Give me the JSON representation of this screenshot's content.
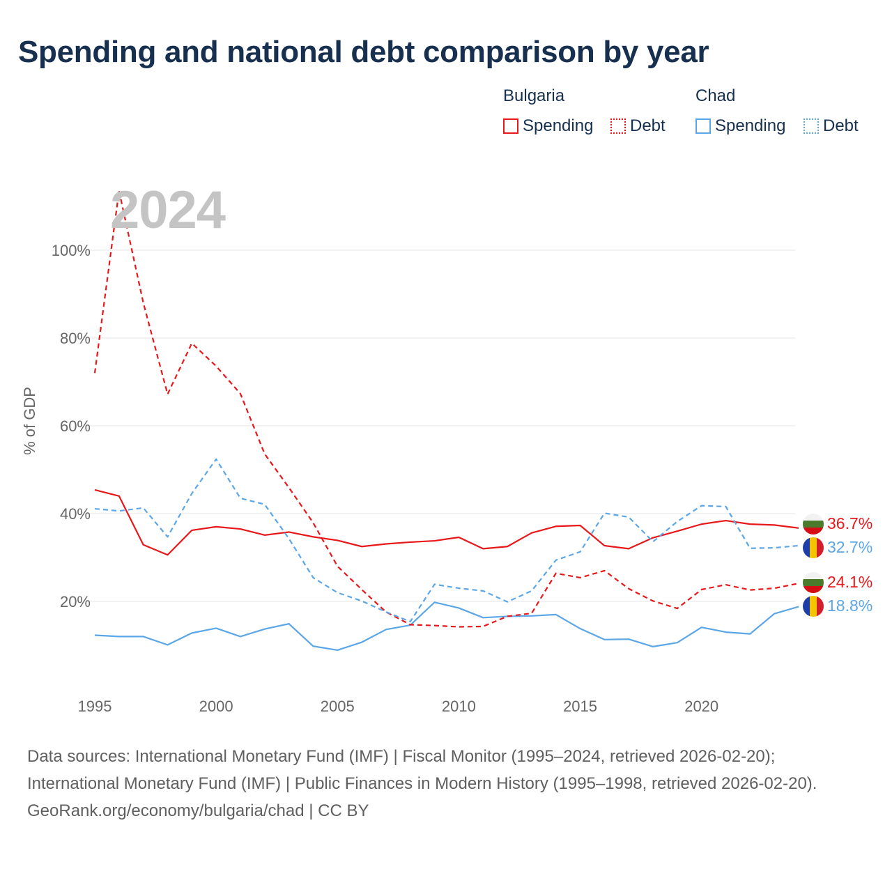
{
  "title": "Spending and national debt comparison by year",
  "year_label": "2024",
  "legend": {
    "groups": [
      {
        "name": "Bulgaria",
        "color": "#e8171a",
        "items": [
          {
            "label": "Spending",
            "style": "solid"
          },
          {
            "label": "Debt",
            "style": "dotted"
          }
        ]
      },
      {
        "name": "Chad",
        "color": "#5ba6e6",
        "items": [
          {
            "label": "Spending",
            "style": "solid"
          },
          {
            "label": "Debt",
            "style": "dotted"
          }
        ]
      }
    ]
  },
  "chart_data": {
    "type": "line",
    "title": "Spending and national debt comparison by year",
    "xlabel": "",
    "ylabel": "% of GDP",
    "xlim": [
      1995,
      2024
    ],
    "ylim": [
      0,
      110
    ],
    "x_ticks": [
      1995,
      2000,
      2005,
      2010,
      2015,
      2020
    ],
    "y_ticks": [
      20,
      40,
      60,
      80,
      100
    ],
    "y_tick_labels": [
      "20%",
      "40%",
      "60%",
      "80%",
      "100%"
    ],
    "grid": true,
    "x": [
      1995,
      1996,
      1997,
      1998,
      1999,
      2000,
      2001,
      2002,
      2003,
      2004,
      2005,
      2006,
      2007,
      2008,
      2009,
      2010,
      2011,
      2012,
      2013,
      2014,
      2015,
      2016,
      2017,
      2018,
      2019,
      2020,
      2021,
      2022,
      2023,
      2024
    ],
    "series": [
      {
        "name": "Bulgaria Spending",
        "country": "Bulgaria",
        "indicator": "Spending",
        "color": "#e8171a",
        "dash": "solid",
        "values": [
          45.4,
          44.0,
          32.9,
          30.6,
          36.2,
          37.0,
          36.5,
          35.1,
          35.8,
          34.7,
          33.9,
          32.5,
          33.1,
          33.5,
          33.8,
          34.6,
          32.0,
          32.5,
          35.6,
          37.1,
          37.3,
          32.7,
          32.0,
          34.5,
          36.0,
          37.6,
          38.4,
          37.6,
          37.4,
          36.7
        ],
        "end_label": "36.7%"
      },
      {
        "name": "Chad Spending",
        "country": "Chad",
        "indicator": "Spending",
        "color": "#5ba6e6",
        "dash": "solid",
        "values": [
          12.3,
          12.0,
          12.0,
          10.1,
          12.8,
          13.9,
          12.0,
          13.7,
          14.9,
          9.8,
          8.9,
          10.7,
          13.6,
          14.6,
          19.8,
          18.5,
          16.3,
          16.6,
          16.7,
          17.0,
          13.8,
          11.3,
          11.4,
          9.7,
          10.6,
          14.1,
          13.0,
          12.6,
          17.2,
          18.8
        ],
        "end_label": "18.8%"
      },
      {
        "name": "Bulgaria Debt",
        "country": "Bulgaria",
        "indicator": "Debt",
        "color": "#e8171a",
        "dash": "dashed",
        "values": [
          72.0,
          113.5,
          88.0,
          67.2,
          78.8,
          73.6,
          67.3,
          53.6,
          45.9,
          37.9,
          28.0,
          22.7,
          17.6,
          14.7,
          14.5,
          14.2,
          14.3,
          16.6,
          17.3,
          26.4,
          25.4,
          27.0,
          22.9,
          20.1,
          18.4,
          22.7,
          23.8,
          22.6,
          23.0,
          24.1
        ],
        "end_label": "24.1%"
      },
      {
        "name": "Chad Debt",
        "country": "Chad",
        "indicator": "Debt",
        "color": "#5ba6e6",
        "dash": "dashed",
        "values": [
          41.1,
          40.6,
          41.3,
          34.7,
          44.6,
          52.4,
          43.5,
          42.1,
          34.3,
          25.4,
          22.0,
          20.1,
          17.6,
          15.4,
          23.9,
          23.0,
          22.4,
          19.9,
          22.4,
          29.4,
          31.3,
          40.1,
          39.2,
          33.6,
          38.2,
          41.8,
          41.6,
          32.1,
          32.2,
          32.7
        ],
        "end_label": "32.7%"
      }
    ]
  },
  "footer": {
    "sources": "Data sources: International Monetary Fund (IMF) | Fiscal Monitor (1995–2024, retrieved 2026-02-20); International Monetary Fund (IMF) | Public Finances in Modern History (1995–1998, retrieved 2026-02-20).",
    "credit": "GeoRank.org/economy/bulgaria/chad | CC BY"
  }
}
